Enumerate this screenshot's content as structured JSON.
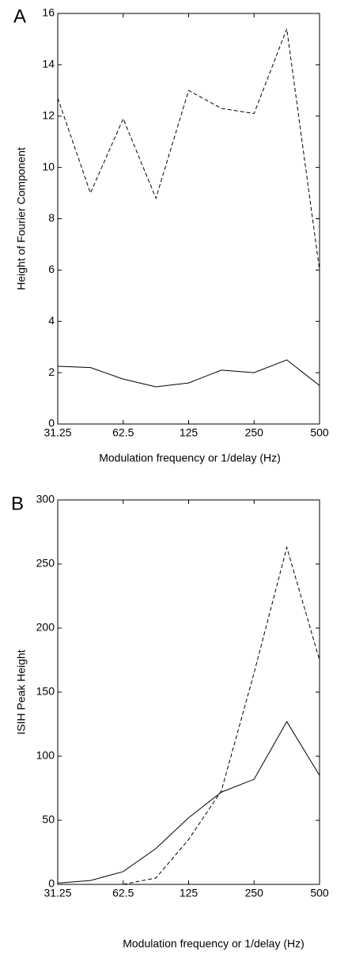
{
  "chart_data": [
    {
      "type": "line",
      "panel_label": "A",
      "xlabel": "Modulation frequency or 1/delay (Hz)",
      "ylabel": "Height of Fourier Component",
      "x": [
        31.25,
        44.19,
        62.5,
        88.39,
        125,
        176.78,
        250,
        353.55,
        500
      ],
      "xscale": "log",
      "xlim": [
        31.25,
        500
      ],
      "xticks": [
        31.25,
        62.5,
        125,
        250,
        500
      ],
      "ylim": [
        0,
        16
      ],
      "yticks": [
        0,
        2,
        4,
        6,
        8,
        10,
        12,
        14,
        16
      ],
      "series": [
        {
          "color": "#000000",
          "dash": true,
          "values": [
            12.7,
            9.0,
            11.9,
            8.8,
            13.0,
            12.3,
            12.1,
            15.4,
            6.0
          ]
        },
        {
          "color": "#000000",
          "dash": false,
          "values": [
            2.25,
            2.2,
            1.75,
            1.45,
            1.6,
            2.1,
            2.0,
            2.5,
            1.5
          ]
        }
      ]
    },
    {
      "type": "line",
      "panel_label": "B",
      "xlabel": "Modulation frequency or 1/delay (Hz)",
      "ylabel": "ISIH Peak Height",
      "x": [
        31.25,
        44.19,
        62.5,
        88.39,
        125,
        176.78,
        250,
        353.55,
        500
      ],
      "xscale": "log",
      "xlim": [
        31.25,
        500
      ],
      "xticks": [
        31.25,
        62.5,
        125,
        250,
        500
      ],
      "ylim": [
        0,
        300
      ],
      "yticks": [
        0,
        50,
        100,
        150,
        200,
        250,
        300
      ],
      "series": [
        {
          "color": "#000000",
          "dash": true,
          "values": [
            null,
            null,
            0,
            5,
            35,
            73,
            165,
            263,
            175
          ]
        },
        {
          "color": "#000000",
          "dash": false,
          "values": [
            1,
            3,
            10,
            28,
            52,
            72,
            82,
            127,
            85
          ]
        }
      ]
    }
  ]
}
